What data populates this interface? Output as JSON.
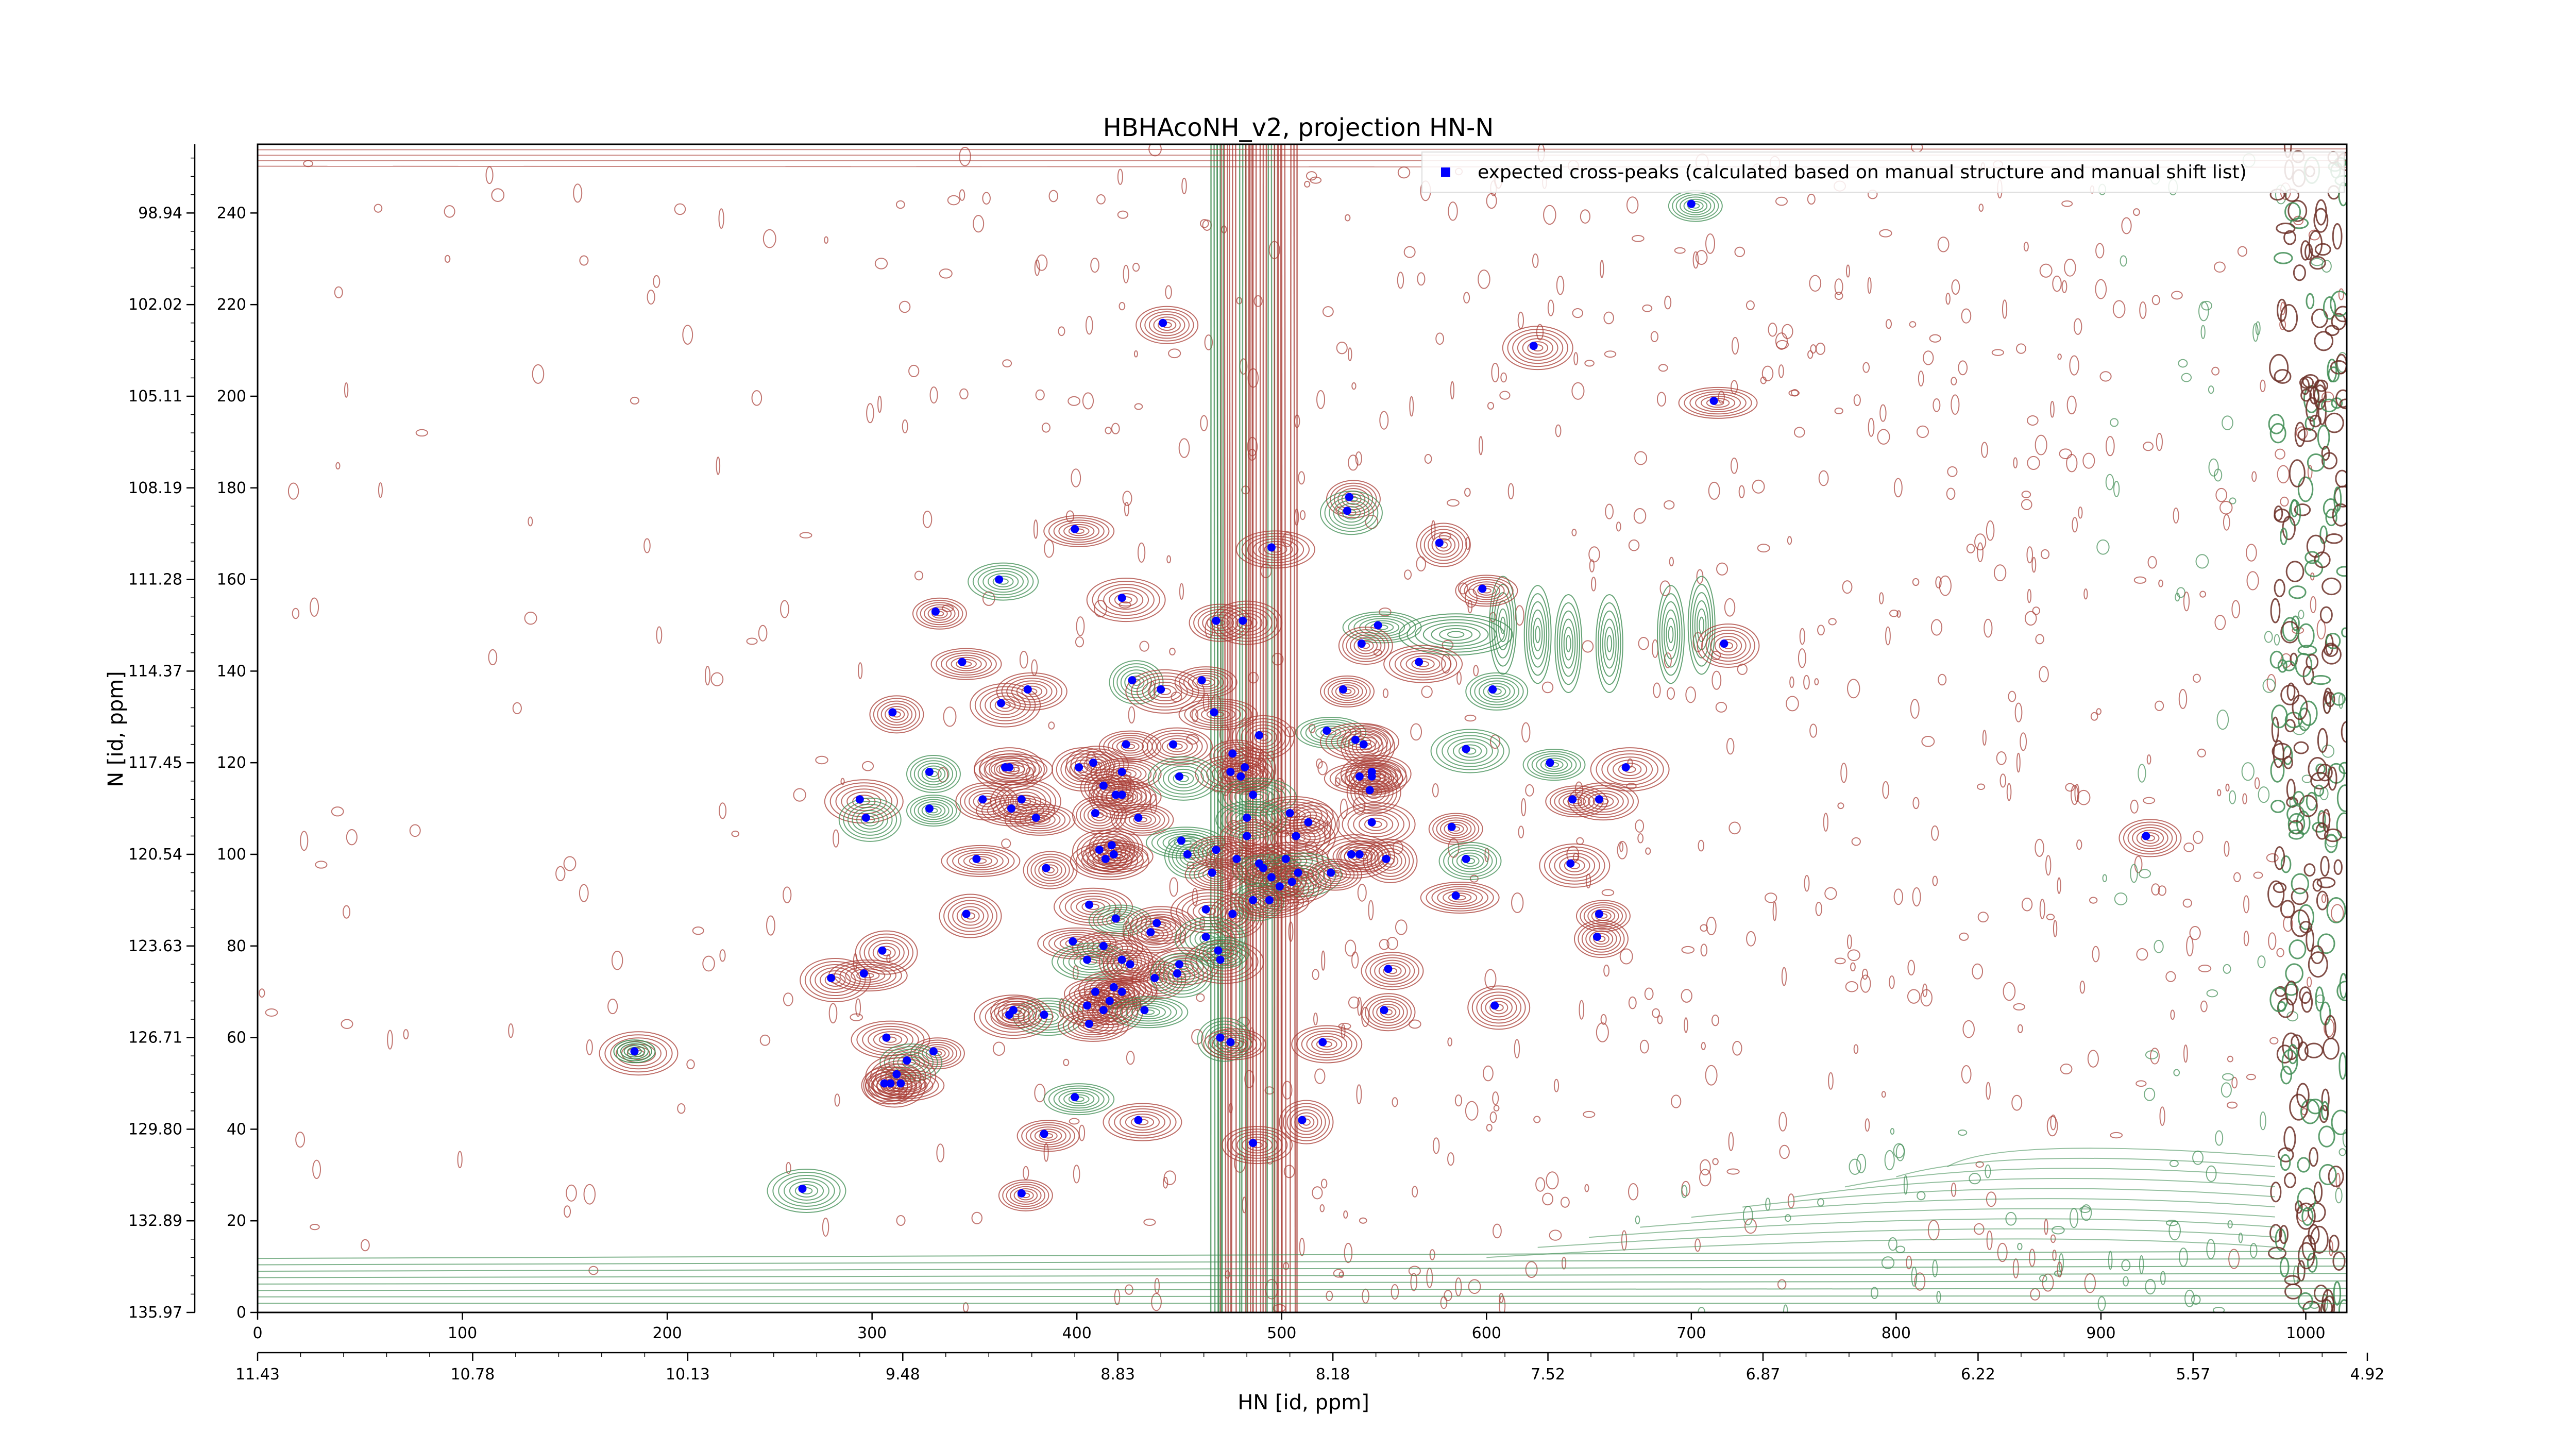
{
  "chart_data": {
    "type": "scatter",
    "title": "HBHAcoNH_v2, projection HN-N",
    "xlabel": "HN [id, ppm]",
    "ylabel": "N [id, ppm]",
    "xlim": [
      0,
      1020
    ],
    "ylim": [
      0,
      255
    ],
    "x_ticks": [
      0,
      100,
      200,
      300,
      400,
      500,
      600,
      700,
      800,
      900,
      1000
    ],
    "y_ticks": [
      0,
      20,
      40,
      60,
      80,
      100,
      120,
      140,
      160,
      180,
      200,
      220,
      240
    ],
    "ppm_x_ticks": [
      {
        "x": 0,
        "label": "11.43"
      },
      {
        "x": 105,
        "label": "10.78"
      },
      {
        "x": 210,
        "label": "10.13"
      },
      {
        "x": 315,
        "label": "9.48"
      },
      {
        "x": 420,
        "label": "8.83"
      },
      {
        "x": 525,
        "label": "8.18"
      },
      {
        "x": 630,
        "label": "7.52"
      },
      {
        "x": 735,
        "label": "6.87"
      },
      {
        "x": 840,
        "label": "6.22"
      },
      {
        "x": 945,
        "label": "5.57"
      },
      {
        "x": 1050,
        "label": "4.92"
      }
    ],
    "ppm_y_ticks": [
      {
        "y": 0,
        "label": "135.97"
      },
      {
        "y": 20,
        "label": "132.89"
      },
      {
        "y": 40,
        "label": "129.80"
      },
      {
        "y": 60,
        "label": "126.71"
      },
      {
        "y": 80,
        "label": "123.63"
      },
      {
        "y": 100,
        "label": "120.54"
      },
      {
        "y": 120,
        "label": "117.45"
      },
      {
        "y": 140,
        "label": "114.37"
      },
      {
        "y": 160,
        "label": "111.28"
      },
      {
        "y": 180,
        "label": "108.19"
      },
      {
        "y": 200,
        "label": "105.11"
      },
      {
        "y": 220,
        "label": "102.02"
      },
      {
        "y": 240,
        "label": "98.94"
      }
    ],
    "legend": {
      "placement": "top-right"
    },
    "series": [
      {
        "name": "expected cross-peaks (calculated based on manual structure and manual shift list)",
        "color": "#0000ff",
        "points": [
          [
            700,
            242
          ],
          [
            442,
            216
          ],
          [
            623,
            211
          ],
          [
            711,
            199
          ],
          [
            533,
            178
          ],
          [
            532,
            175
          ],
          [
            399,
            171
          ],
          [
            495,
            167
          ],
          [
            577,
            168
          ],
          [
            598,
            158
          ],
          [
            362,
            160
          ],
          [
            422,
            156
          ],
          [
            331,
            153
          ],
          [
            468,
            151
          ],
          [
            481,
            151
          ],
          [
            547,
            150
          ],
          [
            539,
            146
          ],
          [
            716,
            146
          ],
          [
            344,
            142
          ],
          [
            567,
            142
          ],
          [
            427,
            138
          ],
          [
            461,
            138
          ],
          [
            376,
            136
          ],
          [
            441,
            136
          ],
          [
            530,
            136
          ],
          [
            603,
            136
          ],
          [
            363,
            133
          ],
          [
            467,
            131
          ],
          [
            310,
            131
          ],
          [
            489,
            126
          ],
          [
            522,
            127
          ],
          [
            536,
            125
          ],
          [
            540,
            124
          ],
          [
            424,
            124
          ],
          [
            447,
            124
          ],
          [
            590,
            123
          ],
          [
            476,
            122
          ],
          [
            408,
            120
          ],
          [
            365,
            119
          ],
          [
            367,
            119
          ],
          [
            328,
            118
          ],
          [
            401,
            119
          ],
          [
            422,
            118
          ],
          [
            475,
            118
          ],
          [
            482,
            119
          ],
          [
            631,
            120
          ],
          [
            544,
            118
          ],
          [
            668,
            119
          ],
          [
            480,
            117
          ],
          [
            544,
            117
          ],
          [
            450,
            117
          ],
          [
            538,
            117
          ],
          [
            413,
            115
          ],
          [
            419,
            113
          ],
          [
            422,
            113
          ],
          [
            486,
            113
          ],
          [
            543,
            114
          ],
          [
            642,
            112
          ],
          [
            655,
            112
          ],
          [
            294,
            112
          ],
          [
            328,
            110
          ],
          [
            354,
            112
          ],
          [
            373,
            112
          ],
          [
            368,
            110
          ],
          [
            409,
            109
          ],
          [
            297,
            108
          ],
          [
            380,
            108
          ],
          [
            504,
            109
          ],
          [
            513,
            107
          ],
          [
            430,
            108
          ],
          [
            483,
            108
          ],
          [
            544,
            107
          ],
          [
            583,
            106
          ],
          [
            483,
            104
          ],
          [
            507,
            104
          ],
          [
            451,
            103
          ],
          [
            417,
            102
          ],
          [
            411,
            101
          ],
          [
            418,
            100
          ],
          [
            414,
            99
          ],
          [
            454,
            100
          ],
          [
            468,
            101
          ],
          [
            478,
            99
          ],
          [
            534,
            100
          ],
          [
            538,
            100
          ],
          [
            590,
            99
          ],
          [
            641,
            98
          ],
          [
            351,
            99
          ],
          [
            385,
            97
          ],
          [
            489,
            98
          ],
          [
            491,
            97
          ],
          [
            502,
            99
          ],
          [
            551,
            99
          ],
          [
            466,
            96
          ],
          [
            505,
            94
          ],
          [
            508,
            96
          ],
          [
            524,
            96
          ],
          [
            495,
            95
          ],
          [
            499,
            93
          ],
          [
            585,
            91
          ],
          [
            486,
            90
          ],
          [
            346,
            87
          ],
          [
            494,
            90
          ],
          [
            406,
            89
          ],
          [
            476,
            87
          ],
          [
            419,
            86
          ],
          [
            439,
            85
          ],
          [
            463,
            88
          ],
          [
            655,
            87
          ],
          [
            436,
            83
          ],
          [
            463,
            82
          ],
          [
            398,
            81
          ],
          [
            654,
            82
          ],
          [
            305,
            79
          ],
          [
            413,
            80
          ],
          [
            405,
            77
          ],
          [
            422,
            77
          ],
          [
            426,
            76
          ],
          [
            450,
            76
          ],
          [
            470,
            77
          ],
          [
            469,
            79
          ],
          [
            552,
            75
          ],
          [
            280,
            73
          ],
          [
            296,
            74
          ],
          [
            438,
            73
          ],
          [
            449,
            74
          ],
          [
            409,
            70
          ],
          [
            418,
            71
          ],
          [
            416,
            68
          ],
          [
            422,
            70
          ],
          [
            384,
            65
          ],
          [
            367,
            65
          ],
          [
            369,
            66
          ],
          [
            405,
            67
          ],
          [
            413,
            66
          ],
          [
            433,
            66
          ],
          [
            550,
            66
          ],
          [
            604,
            67
          ],
          [
            406,
            63
          ],
          [
            307,
            60
          ],
          [
            470,
            60
          ],
          [
            475,
            59
          ],
          [
            520,
            59
          ],
          [
            184,
            57
          ],
          [
            330,
            57
          ],
          [
            317,
            55
          ],
          [
            312,
            52
          ],
          [
            314,
            50
          ],
          [
            306,
            50
          ],
          [
            309,
            50
          ],
          [
            399,
            47
          ],
          [
            430,
            42
          ],
          [
            510,
            42
          ],
          [
            384,
            39
          ],
          [
            486,
            37
          ],
          [
            266,
            27
          ],
          [
            373,
            26
          ],
          [
            922,
            104
          ]
        ]
      }
    ]
  }
}
